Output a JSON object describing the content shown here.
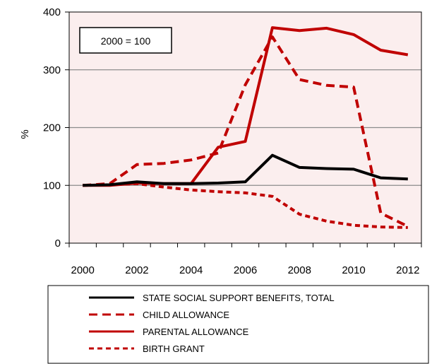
{
  "chart_data": {
    "type": "line",
    "title": "",
    "ylabel": "%",
    "xlabel": "",
    "annotation": "2000 = 100",
    "ylim": [
      0,
      400
    ],
    "yticks": [
      0,
      100,
      200,
      300,
      400
    ],
    "xlim": [
      1999.5,
      2012.5
    ],
    "xticks": [
      2000,
      2002,
      2004,
      2006,
      2008,
      2010,
      2012
    ],
    "grid": true,
    "plot_background": "#fbeeee",
    "legend_position": "bottom",
    "series": [
      {
        "name": "STATE SOCIAL SUPPORT BENEFITS, TOTAL",
        "color": "#000000",
        "style": "solid",
        "x": [
          2000,
          2001,
          2002,
          2003,
          2004,
          2005,
          2006,
          2007,
          2008,
          2009,
          2010,
          2011,
          2012
        ],
        "values": [
          100,
          101,
          106,
          103,
          103,
          104,
          106,
          152,
          131,
          129,
          128,
          113,
          111
        ]
      },
      {
        "name": "CHILD ALLOWANCE",
        "color": "#c00000",
        "style": "dashed",
        "x": [
          2000,
          2001,
          2002,
          2003,
          2004,
          2005,
          2006,
          2007,
          2008,
          2009,
          2010,
          2011,
          2012
        ],
        "values": [
          100,
          103,
          136,
          138,
          144,
          156,
          274,
          357,
          283,
          273,
          270,
          52,
          29
        ]
      },
      {
        "name": "PARENTAL ALLOWANCE",
        "color": "#c00000",
        "style": "solid",
        "x": [
          2000,
          2001,
          2002,
          2003,
          2004,
          2005,
          2006,
          2007,
          2008,
          2009,
          2010,
          2011,
          2012
        ],
        "values": [
          100,
          100,
          104,
          103,
          103,
          166,
          176,
          373,
          368,
          372,
          361,
          334,
          326
        ]
      },
      {
        "name": "BIRTH GRANT",
        "color": "#c00000",
        "style": "shortdash",
        "x": [
          2000,
          2001,
          2002,
          2003,
          2004,
          2005,
          2006,
          2007,
          2008,
          2009,
          2010,
          2011,
          2012
        ],
        "values": [
          100,
          101,
          103,
          97,
          92,
          89,
          87,
          81,
          50,
          38,
          31,
          28,
          27
        ]
      }
    ]
  }
}
